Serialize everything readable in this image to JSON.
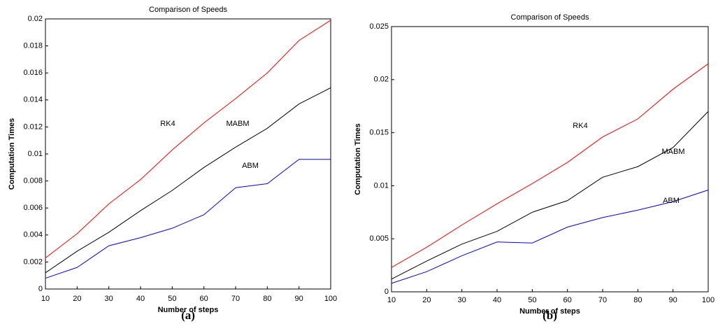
{
  "chart_data": [
    {
      "type": "line",
      "title": "Comparison of Speeds",
      "xlabel": "Number of steps",
      "ylabel": "Computation Times",
      "caption": "(a)",
      "x": [
        10,
        20,
        30,
        40,
        50,
        60,
        70,
        80,
        90,
        100
      ],
      "xlim": [
        10,
        100
      ],
      "xticks": [
        10,
        20,
        30,
        40,
        50,
        60,
        70,
        80,
        90,
        100
      ],
      "ylim": [
        0,
        0.02
      ],
      "yticks": [
        0,
        0.002,
        0.004,
        0.006,
        0.008,
        0.01,
        0.012,
        0.014,
        0.016,
        0.018,
        0.02
      ],
      "series": [
        {
          "name": "RK4",
          "color": "#ff0000",
          "values": [
            0.0023,
            0.0041,
            0.0063,
            0.0081,
            0.0103,
            0.0123,
            0.0141,
            0.016,
            0.0184,
            0.0199
          ]
        },
        {
          "name": "MABM",
          "color": "#000000",
          "values": [
            0.0012,
            0.0028,
            0.0042,
            0.0058,
            0.0073,
            0.009,
            0.0105,
            0.0119,
            0.0137,
            0.0149
          ]
        },
        {
          "name": "ABM",
          "color": "#0000ff",
          "values": [
            0.0008,
            0.0016,
            0.0032,
            0.0038,
            0.0045,
            0.0055,
            0.0075,
            0.0078,
            0.0096,
            0.0096
          ]
        }
      ]
    },
    {
      "type": "line",
      "title": "Comparison of Speeds",
      "xlabel": "Number of steps",
      "ylabel": "Computation Times",
      "caption": "(b)",
      "x": [
        10,
        20,
        30,
        40,
        50,
        60,
        70,
        80,
        90,
        100
      ],
      "xlim": [
        10,
        100
      ],
      "xticks": [
        10,
        20,
        30,
        40,
        50,
        60,
        70,
        80,
        90,
        100
      ],
      "ylim": [
        0,
        0.025
      ],
      "yticks": [
        0,
        0.005,
        0.01,
        0.015,
        0.02,
        0.025
      ],
      "series": [
        {
          "name": "RK4",
          "color": "#ff0000",
          "values": [
            0.0023,
            0.0042,
            0.0063,
            0.0083,
            0.0102,
            0.0122,
            0.0146,
            0.0163,
            0.0191,
            0.0215
          ]
        },
        {
          "name": "MABM",
          "color": "#000000",
          "values": [
            0.0012,
            0.0029,
            0.0045,
            0.0057,
            0.0075,
            0.0086,
            0.0108,
            0.0118,
            0.0136,
            0.017
          ]
        },
        {
          "name": "ABM",
          "color": "#0000ff",
          "values": [
            0.0008,
            0.0019,
            0.0034,
            0.0047,
            0.0046,
            0.0061,
            0.007,
            0.0077,
            0.0085,
            0.0096
          ]
        }
      ]
    }
  ]
}
